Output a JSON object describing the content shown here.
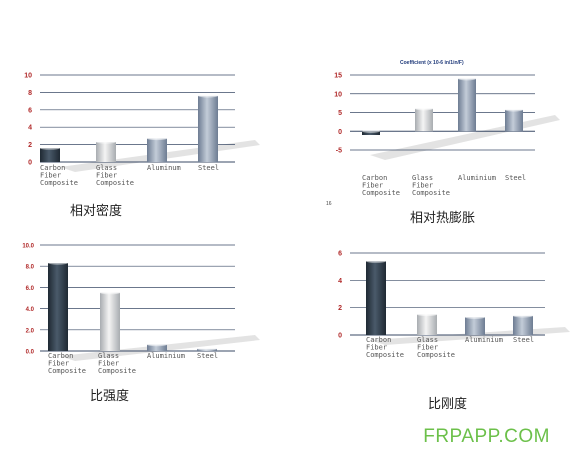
{
  "watermark": "FRPAPP.COM",
  "stray_mark": "16",
  "colors": {
    "carbon": "#2e3a46",
    "glass": "#c9ccd0",
    "aluminium": "#8e9db2",
    "steel": "#8e9db2",
    "axis_line": "#3a4a66",
    "tick_red": "#b02828",
    "label_gray": "#555555"
  },
  "chart_data": [
    {
      "type": "bar",
      "title": "相对密度",
      "subtitle": "",
      "categories": [
        "Carbon Fiber Composite",
        "Glass Fiber Composite",
        "Aluminum",
        "Steel"
      ],
      "values": [
        1.6,
        2.3,
        2.7,
        7.6
      ],
      "yticks": [
        "10",
        "8",
        "6",
        "4",
        "2",
        "0"
      ],
      "ylim": [
        0,
        10
      ],
      "grid": true
    },
    {
      "type": "bar",
      "title": "相对热膨胀",
      "subtitle": "Coefficient (x 10-6 in/1in/F)",
      "categories": [
        "Carbon Fiber Composite",
        "Glass Fiber Composite",
        "Aluminium",
        "Steel"
      ],
      "values": [
        -1,
        6,
        14,
        5.7
      ],
      "yticks": [
        "15",
        "10",
        "5",
        "0",
        "-5"
      ],
      "ylim": [
        -5,
        15
      ],
      "grid": true
    },
    {
      "type": "bar",
      "title": "比强度",
      "subtitle": "",
      "categories": [
        "Carbon Fiber Composite",
        "Glass Fiber Composite",
        "Aluminium",
        "Steel"
      ],
      "values": [
        8.3,
        5.5,
        0.6,
        0.2
      ],
      "yticks": [
        "10.0",
        "8.0",
        "6.0",
        "4.0",
        "2.0",
        "0.0"
      ],
      "ylim": [
        0,
        10
      ],
      "grid": true
    },
    {
      "type": "bar",
      "title": "比刚度",
      "subtitle": "",
      "categories": [
        "Carbon Fiber Composite",
        "Glass Fiber Composite",
        "Aluminium",
        "Steel"
      ],
      "values": [
        5.4,
        1.5,
        1.3,
        1.4
      ],
      "yticks": [
        "6",
        "4",
        "2",
        "0"
      ],
      "ylim": [
        0,
        6
      ],
      "grid": true
    }
  ]
}
